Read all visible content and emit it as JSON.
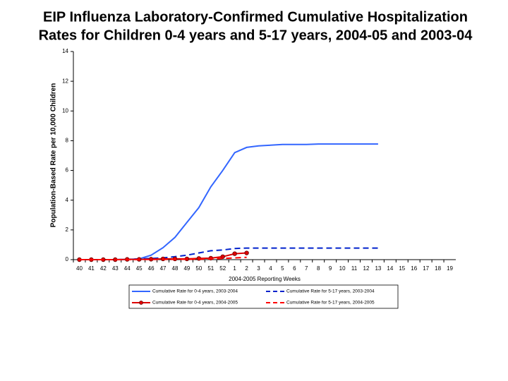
{
  "chart_data": {
    "type": "line",
    "title": [
      "EIP Influenza Laboratory-Confirmed Cumulative Hospitalization",
      "Rates for Children 0-4 years and 5-17 years, 2004-05 and 2003-04"
    ],
    "x_label": "2004-2005 Reporting Weeks",
    "y_label": "Population-Based Rate per 10,000 Children",
    "categories": [
      "40",
      "41",
      "42",
      "43",
      "44",
      "45",
      "46",
      "47",
      "48",
      "49",
      "50",
      "51",
      "52",
      "1",
      "2",
      "3",
      "4",
      "5",
      "6",
      "7",
      "8",
      "9",
      "10",
      "11",
      "12",
      "13",
      "14",
      "15",
      "16",
      "17",
      "18",
      "19"
    ],
    "ylim": [
      0,
      14
    ],
    "yticks": [
      0,
      2,
      4,
      6,
      8,
      10,
      12,
      14
    ],
    "series": [
      {
        "name": "Cumulative Rate for 0-4 years, 2003-2004",
        "color": "#3366ff",
        "dash": false,
        "markers": false,
        "values": [
          0,
          0,
          0,
          0,
          0.02,
          0.05,
          0.3,
          0.8,
          1.5,
          2.5,
          3.5,
          4.9,
          6.0,
          7.2,
          7.55,
          7.65,
          7.7,
          7.75,
          7.75,
          7.75,
          7.78,
          7.78,
          7.78,
          7.78,
          7.78,
          7.78,
          null,
          null,
          null,
          null,
          null,
          null
        ]
      },
      {
        "name": "Cumulative Rate for 5-17 years, 2003-2004",
        "color": "#0022cc",
        "dash": true,
        "markers": false,
        "values": [
          0,
          0,
          0,
          0,
          0.02,
          0.05,
          0.08,
          0.12,
          0.2,
          0.3,
          0.45,
          0.6,
          0.65,
          0.75,
          0.78,
          0.78,
          0.78,
          0.78,
          0.78,
          0.78,
          0.78,
          0.78,
          0.78,
          0.78,
          0.78,
          0.78,
          null,
          null,
          null,
          null,
          null,
          null
        ]
      },
      {
        "name": "Cumulative Rate for 0-4 years, 2004-2005",
        "color": "#dd0000",
        "dash": false,
        "markers": true,
        "values": [
          0,
          0,
          0,
          0,
          0.02,
          0.02,
          0.03,
          0.05,
          0.05,
          0.05,
          0.08,
          0.1,
          0.2,
          0.4,
          0.45,
          null,
          null,
          null,
          null,
          null,
          null,
          null,
          null,
          null,
          null,
          null,
          null,
          null,
          null,
          null,
          null,
          null
        ]
      },
      {
        "name": "Cumulative Rate for 5-17 years, 2004-2005",
        "color": "#ff0000",
        "dash": true,
        "markers": false,
        "values": [
          0,
          0,
          0,
          0,
          0,
          0.01,
          0.01,
          0.02,
          0.02,
          0.03,
          0.04,
          0.05,
          0.08,
          0.12,
          0.15,
          null,
          null,
          null,
          null,
          null,
          null,
          null,
          null,
          null,
          null,
          null,
          null,
          null,
          null,
          null,
          null,
          null
        ]
      }
    ]
  }
}
